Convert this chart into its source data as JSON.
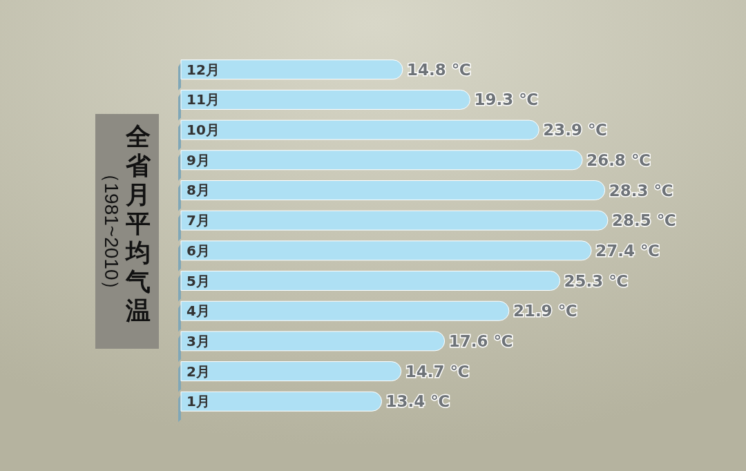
{
  "chart_data": {
    "type": "bar",
    "orientation": "horizontal",
    "title": "全省月平均气温",
    "subtitle": "（1981~2010）",
    "categories": [
      "12月",
      "11月",
      "10月",
      "9月",
      "8月",
      "7月",
      "6月",
      "5月",
      "4月",
      "3月",
      "2月",
      "1月"
    ],
    "values": [
      14.8,
      19.3,
      23.9,
      26.8,
      28.3,
      28.5,
      27.4,
      25.3,
      21.9,
      17.6,
      14.7,
      13.4
    ],
    "value_labels": [
      "14.8 ℃",
      "19.3 ℃",
      "23.9 ℃",
      "26.8 ℃",
      "28.3 ℃",
      "28.5 ℃",
      "27.4 ℃",
      "25.3 ℃",
      "21.9 ℃",
      "17.6 ℃",
      "14.7 ℃",
      "13.4 ℃"
    ],
    "color": "#aee0f4"
  }
}
